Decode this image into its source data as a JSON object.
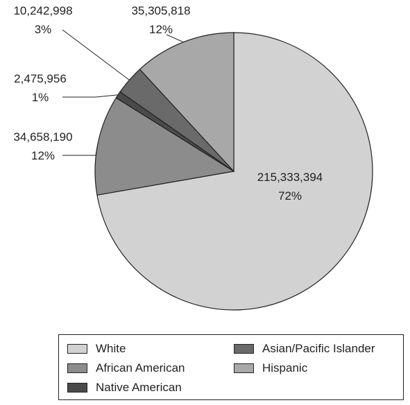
{
  "chart_data": {
    "type": "pie",
    "slices": [
      {
        "name": "White",
        "value": 215333394,
        "value_label": "215,333,394",
        "pct_label": "72%",
        "color": "#d2d2d2"
      },
      {
        "name": "African American",
        "value": 34658190,
        "value_label": "34,658,190",
        "pct_label": "12%",
        "color": "#8c8c8c"
      },
      {
        "name": "Native American",
        "value": 2475956,
        "value_label": "2,475,956",
        "pct_label": "1%",
        "color": "#4a4a4a"
      },
      {
        "name": "Asian/Pacific Islander",
        "value": 10242998,
        "value_label": "10,242,998",
        "pct_label": "3%",
        "color": "#6a6a6a"
      },
      {
        "name": "Hispanic",
        "value": 35305818,
        "value_label": "35,305,818",
        "pct_label": "12%",
        "color": "#a8a8a8"
      }
    ],
    "legend_placement": "bottom"
  }
}
